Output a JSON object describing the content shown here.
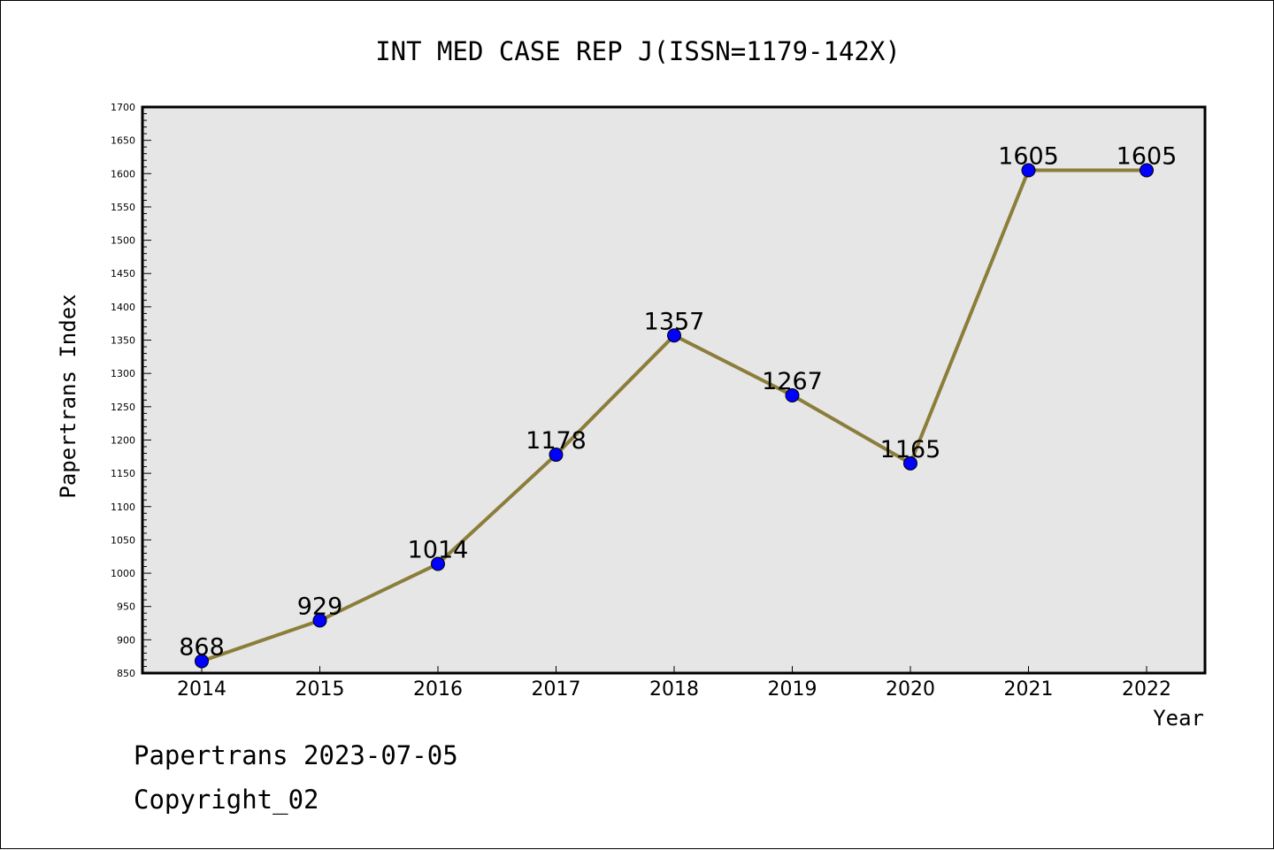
{
  "chart_data": {
    "type": "line",
    "title": "INT MED CASE REP J(ISSN=1179-142X)",
    "xlabel": "Year",
    "ylabel": "Papertrans Index",
    "x": [
      "2014",
      "2015",
      "2016",
      "2017",
      "2018",
      "2019",
      "2020",
      "2021",
      "2022"
    ],
    "series": [
      {
        "values": [
          868,
          929,
          1014,
          1178,
          1357,
          1267,
          1165,
          1605,
          1605
        ]
      }
    ],
    "data_labels": [
      "868",
      "929",
      "1014",
      "1178",
      "1357",
      "1267",
      "1165",
      "1605",
      "1605"
    ],
    "ylim": [
      850,
      1700
    ],
    "y_ticks": [
      "850",
      "900",
      "950",
      "1000",
      "1050",
      "1100",
      "1150",
      "1200",
      "1250",
      "1300",
      "1350",
      "1400",
      "1450",
      "1500",
      "1550",
      "1600",
      "1650",
      "1700"
    ],
    "y_minor_step": 10,
    "grid": false,
    "legend": "none",
    "colors": {
      "line": "#8b7d3a",
      "marker": "#0000ff",
      "plot_background": "#e6e6e6"
    }
  },
  "footer": {
    "source": "Papertrans 2023-07-05",
    "copyright": "Copyright_02"
  }
}
